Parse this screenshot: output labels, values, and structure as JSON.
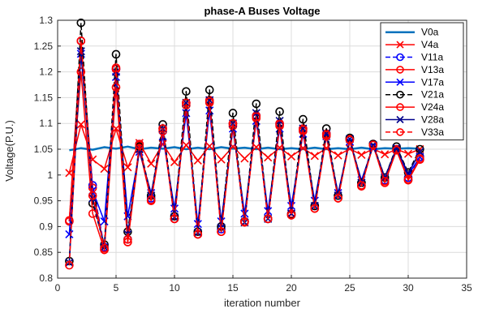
{
  "chart_data": {
    "type": "line",
    "title": "phase-A Buses Voltage",
    "xlabel": "iteration number",
    "ylabel": "Voltage(P.U.)",
    "xlim": [
      0,
      35
    ],
    "ylim": [
      0.8,
      1.3
    ],
    "xticks": [
      0,
      5,
      10,
      15,
      20,
      25,
      30,
      35
    ],
    "yticks": [
      0.8,
      0.85,
      0.9,
      0.95,
      1,
      1.05,
      1.1,
      1.15,
      1.2,
      1.25,
      1.3
    ],
    "xtick_labels": [
      "0",
      "5",
      "10",
      "15",
      "20",
      "25",
      "30",
      "35"
    ],
    "ytick_labels": [
      "0.8",
      "0.85",
      "0.9",
      "0.95",
      "1",
      "1.05",
      "1.1",
      "1.15",
      "1.2",
      "1.25",
      "1.3"
    ],
    "grid": true,
    "legend_position": "top-right",
    "x": [
      1,
      2,
      3,
      4,
      5,
      6,
      7,
      8,
      9,
      10,
      11,
      12,
      13,
      14,
      15,
      16,
      17,
      18,
      19,
      20,
      21,
      22,
      23,
      24,
      25,
      26,
      27,
      28,
      29,
      30,
      31
    ],
    "series": [
      {
        "name": "V0a",
        "color": "#0072BD",
        "line_style": "solid",
        "line_width": 2.5,
        "marker": "none",
        "values": [
          1.048,
          1.052,
          1.049,
          1.054,
          1.051,
          1.055,
          1.05,
          1.053,
          1.051,
          1.054,
          1.05,
          1.053,
          1.05,
          1.054,
          1.051,
          1.053,
          1.05,
          1.053,
          1.05,
          1.052,
          1.05,
          1.053,
          1.05,
          1.052,
          1.05,
          1.053,
          1.05,
          1.052,
          1.051,
          1.052,
          1.051
        ]
      },
      {
        "name": "V4a",
        "color": "#FF0000",
        "line_style": "solid",
        "line_width": 1.5,
        "marker": "x",
        "values": [
          1.004,
          1.098,
          1.03,
          1.012,
          1.09,
          1.015,
          1.062,
          1.022,
          1.06,
          1.025,
          1.058,
          1.028,
          1.056,
          1.03,
          1.055,
          1.032,
          1.054,
          1.034,
          1.053,
          1.036,
          1.052,
          1.037,
          1.052,
          1.038,
          1.051,
          1.039,
          1.051,
          1.04,
          1.05,
          1.041,
          1.05
        ]
      },
      {
        "name": "V11a",
        "color": "#0000FF",
        "line_style": "dashed",
        "line_width": 1.5,
        "marker": "o",
        "values": [
          0.91,
          1.26,
          0.98,
          0.86,
          1.205,
          0.875,
          1.06,
          0.955,
          1.09,
          0.915,
          1.14,
          0.885,
          1.145,
          0.895,
          1.1,
          0.91,
          1.115,
          0.915,
          1.1,
          0.925,
          1.09,
          0.94,
          1.08,
          0.96,
          1.07,
          0.985,
          1.06,
          0.99,
          1.05,
          0.995,
          1.035
        ]
      },
      {
        "name": "V13a",
        "color": "#FF0000",
        "line_style": "solid",
        "line_width": 1.5,
        "marker": "o",
        "values": [
          0.91,
          1.26,
          0.975,
          0.855,
          1.205,
          0.87,
          1.06,
          0.95,
          1.09,
          0.915,
          1.14,
          0.885,
          1.145,
          0.89,
          1.1,
          0.91,
          1.115,
          0.915,
          1.1,
          0.925,
          1.09,
          0.935,
          1.08,
          0.955,
          1.07,
          0.98,
          1.06,
          0.985,
          1.05,
          0.99,
          1.03
        ]
      },
      {
        "name": "V17a",
        "color": "#0000FF",
        "line_style": "solid",
        "line_width": 1.5,
        "marker": "x",
        "values": [
          0.885,
          1.235,
          0.97,
          0.91,
          1.19,
          0.92,
          1.045,
          0.965,
          1.075,
          0.935,
          1.12,
          0.905,
          1.125,
          0.91,
          1.09,
          0.925,
          1.105,
          0.93,
          1.09,
          0.94,
          1.08,
          0.95,
          1.075,
          0.965,
          1.065,
          0.99,
          1.055,
          0.995,
          1.05,
          1.0,
          1.035
        ]
      },
      {
        "name": "V21a",
        "color": "#000000",
        "line_style": "dashed",
        "line_width": 1.5,
        "marker": "o",
        "values": [
          0.833,
          1.295,
          0.945,
          0.865,
          1.234,
          0.89,
          1.055,
          0.96,
          1.098,
          0.92,
          1.162,
          0.89,
          1.165,
          0.9,
          1.12,
          0.91,
          1.138,
          0.915,
          1.123,
          0.923,
          1.108,
          0.94,
          1.09,
          0.96,
          1.072,
          0.985,
          1.06,
          0.995,
          1.055,
          1.005,
          1.05
        ]
      },
      {
        "name": "V24a",
        "color": "#FF0000",
        "line_style": "solid",
        "line_width": 1.5,
        "marker": "o",
        "values": [
          0.912,
          1.2,
          0.925,
          0.855,
          1.17,
          0.87,
          1.05,
          0.95,
          1.085,
          0.915,
          1.135,
          0.885,
          1.14,
          0.89,
          1.095,
          0.91,
          1.11,
          0.915,
          1.095,
          0.922,
          1.085,
          0.935,
          1.075,
          0.955,
          1.068,
          0.978,
          1.058,
          0.985,
          1.048,
          0.99,
          1.03
        ]
      },
      {
        "name": "V28a",
        "color": "#00008B",
        "line_style": "solid",
        "line_width": 1.5,
        "marker": "x",
        "values": [
          0.83,
          1.24,
          0.955,
          0.86,
          1.2,
          0.885,
          1.05,
          0.96,
          1.09,
          0.918,
          1.14,
          0.888,
          1.145,
          0.898,
          1.1,
          0.908,
          1.12,
          0.915,
          1.105,
          0.925,
          1.09,
          0.94,
          1.08,
          0.96,
          1.07,
          0.985,
          1.058,
          0.995,
          1.052,
          1.003,
          1.045
        ]
      },
      {
        "name": "V33a",
        "color": "#FF0000",
        "line_style": "dashed",
        "line_width": 1.5,
        "marker": "o",
        "values": [
          0.825,
          1.26,
          0.96,
          0.858,
          1.208,
          0.875,
          1.058,
          0.952,
          1.09,
          0.915,
          1.14,
          0.885,
          1.142,
          0.89,
          1.1,
          0.908,
          1.113,
          0.915,
          1.098,
          0.922,
          1.088,
          0.935,
          1.078,
          0.955,
          1.068,
          0.98,
          1.058,
          0.988,
          1.048,
          0.992,
          1.032
        ]
      }
    ]
  }
}
